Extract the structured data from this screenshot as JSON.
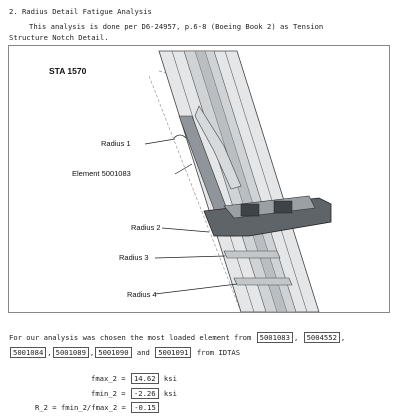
{
  "heading": "2. Radius Detail Fatigue Analysis",
  "intro_line1": "This analysis is done per D6-24957, p.6-8 (Boeing Book 2) as Tension",
  "intro_line2": "Structure Notch Detail.",
  "figure": {
    "title": "STA 1570",
    "labels": {
      "radius1": "Radius 1",
      "element": "Element 5001083",
      "radius2": "Radius 2",
      "radius3": "Radius 3",
      "radius4": "Radius 4"
    }
  },
  "analysis": {
    "text1": "For our analysis was chosen the most loaded element from",
    "elements": [
      "5001083",
      "5004552",
      "5001084",
      "5001089",
      "5001090",
      "5001091"
    ],
    "and": "and",
    "from": "from IDTAS"
  },
  "results": {
    "fmax_label": "fmax_2 =",
    "fmax_value": "14.62",
    "fmin_label": "fmin_2 =",
    "fmin_value": "-2.26",
    "r_label": "R_2 = fmin_2/fmax_2 =",
    "r_value": "-0.15",
    "unit": "ksi"
  }
}
